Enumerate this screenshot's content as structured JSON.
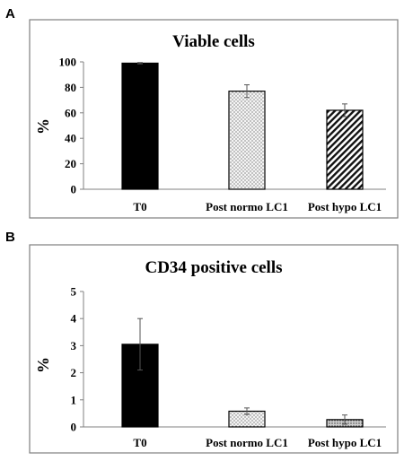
{
  "panels": [
    {
      "letter": "A"
    },
    {
      "letter": "B"
    }
  ],
  "chart_data": [
    {
      "type": "bar",
      "title": "Viable cells",
      "ylabel": "%",
      "xlabel": "",
      "categories": [
        "T0",
        "Post normo LC1",
        "Post hypo LC1"
      ],
      "values": [
        99,
        77,
        62
      ],
      "errors": [
        0.5,
        5,
        5
      ],
      "ylim": [
        0,
        100
      ],
      "yticks": [
        0,
        20,
        40,
        60,
        80,
        100
      ],
      "bar_fills": [
        "solid-black",
        "dotted",
        "diagonal-hatch"
      ],
      "grid": false,
      "legend": "none"
    },
    {
      "type": "bar",
      "title": "CD34 positive cells",
      "ylabel": "%",
      "xlabel": "",
      "categories": [
        "T0",
        "Post normo LC1",
        "Post hypo LC1"
      ],
      "values": [
        3.05,
        0.58,
        0.27
      ],
      "errors": [
        0.95,
        0.12,
        0.17
      ],
      "ylim": [
        0,
        5
      ],
      "yticks": [
        0,
        1,
        2,
        3,
        4,
        5
      ],
      "bar_fills": [
        "solid-black",
        "dotted",
        "dense-dotted"
      ],
      "grid": false,
      "legend": "none"
    }
  ]
}
